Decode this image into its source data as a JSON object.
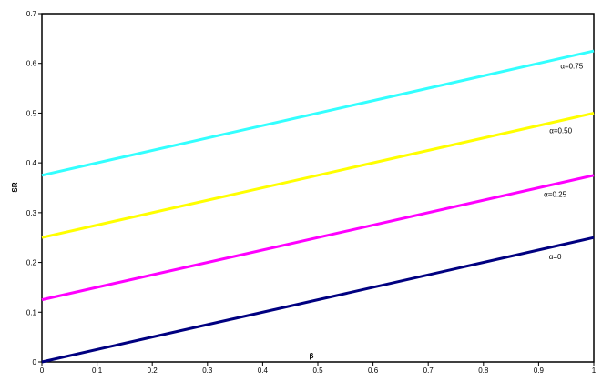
{
  "chart_data": {
    "type": "line",
    "title": "",
    "xlabel": "β",
    "ylabel": "SR",
    "xlim": [
      0,
      1
    ],
    "ylim": [
      0,
      0.7
    ],
    "xticks": [
      "0",
      "0.1",
      "0.2",
      "0.3",
      "0.4",
      "0.5",
      "0.6",
      "0.7",
      "0.8",
      "0.9",
      "1"
    ],
    "yticks": [
      "0",
      "0.1",
      "0.2",
      "0.3",
      "0.4",
      "0.5",
      "0.6",
      "0.7"
    ],
    "grid": false,
    "legend": "none",
    "series": [
      {
        "name": "α=0",
        "color": "#000080",
        "x": [
          0,
          1
        ],
        "y": [
          0,
          0.25
        ],
        "label_at_x": 0.93
      },
      {
        "name": "α=0.25",
        "color": "#FF00FF",
        "x": [
          0,
          1
        ],
        "y": [
          0.125,
          0.375
        ],
        "label_at_x": 0.93
      },
      {
        "name": "α=0.50",
        "color": "#FFFF00",
        "x": [
          0,
          1
        ],
        "y": [
          0.25,
          0.5
        ],
        "label_at_x": 0.94
      },
      {
        "name": "α=0.75",
        "color": "#33FFFF",
        "x": [
          0,
          1
        ],
        "y": [
          0.375,
          0.625
        ],
        "label_at_x": 0.96
      }
    ]
  }
}
